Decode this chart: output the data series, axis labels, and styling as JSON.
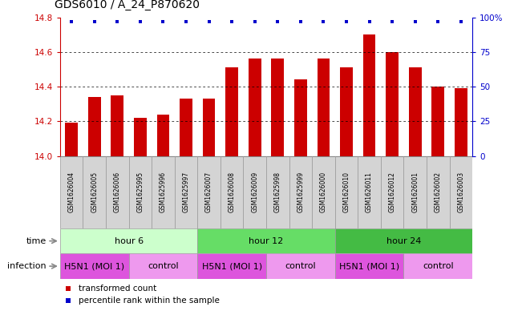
{
  "title": "GDS6010 / A_24_P870620",
  "samples": [
    "GSM1626004",
    "GSM1626005",
    "GSM1626006",
    "GSM1625995",
    "GSM1625996",
    "GSM1625997",
    "GSM1626007",
    "GSM1626008",
    "GSM1626009",
    "GSM1625998",
    "GSM1625999",
    "GSM1626000",
    "GSM1626010",
    "GSM1626011",
    "GSM1626012",
    "GSM1626001",
    "GSM1626002",
    "GSM1626003"
  ],
  "values": [
    14.19,
    14.34,
    14.35,
    14.22,
    14.24,
    14.33,
    14.33,
    14.51,
    14.56,
    14.56,
    14.44,
    14.56,
    14.51,
    14.7,
    14.6,
    14.51,
    14.4,
    14.39
  ],
  "ylim": [
    14.0,
    14.8
  ],
  "yticks": [
    14.0,
    14.2,
    14.4,
    14.6,
    14.8
  ],
  "right_yticks": [
    0,
    25,
    50,
    75,
    100
  ],
  "bar_color": "#cc0000",
  "dot_color": "#0000cc",
  "bar_width": 0.55,
  "title_fontsize": 10,
  "tick_fontsize": 7.5,
  "sample_fontsize": 5.5,
  "row_fontsize": 8,
  "legend_fontsize": 7.5,
  "grid_yticks": [
    14.2,
    14.4,
    14.6
  ],
  "time_groups": [
    {
      "label": "hour 6",
      "start": 0,
      "end": 6,
      "color": "#ccffcc"
    },
    {
      "label": "hour 12",
      "start": 6,
      "end": 12,
      "color": "#66dd66"
    },
    {
      "label": "hour 24",
      "start": 12,
      "end": 18,
      "color": "#44bb44"
    }
  ],
  "infection_groups": [
    {
      "label": "H5N1 (MOI 1)",
      "start": 0,
      "end": 3,
      "color": "#dd55dd"
    },
    {
      "label": "control",
      "start": 3,
      "end": 6,
      "color": "#ee99ee"
    },
    {
      "label": "H5N1 (MOI 1)",
      "start": 6,
      "end": 9,
      "color": "#dd55dd"
    },
    {
      "label": "control",
      "start": 9,
      "end": 12,
      "color": "#ee99ee"
    },
    {
      "label": "H5N1 (MOI 1)",
      "start": 12,
      "end": 15,
      "color": "#dd55dd"
    },
    {
      "label": "control",
      "start": 15,
      "end": 18,
      "color": "#ee99ee"
    }
  ]
}
